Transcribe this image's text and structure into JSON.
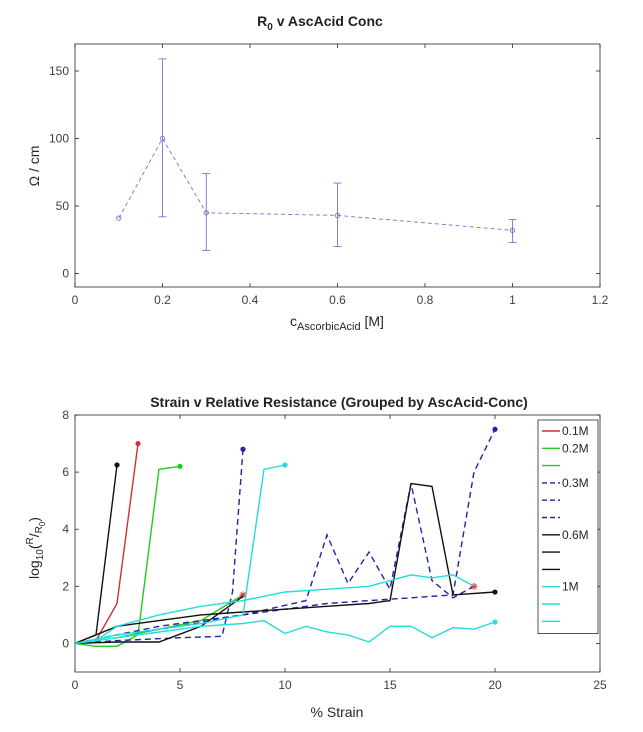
{
  "chart_data": [
    {
      "type": "scatter",
      "title": "R",
      "title_sub": "0",
      "title_rest": " v AscAcid Conc",
      "xlabel": "c",
      "xlabel_sub": "AscorbicAcid",
      "xlabel_rest": " [M]",
      "ylabel": "Ω / cm",
      "xlim": [
        0,
        1.2
      ],
      "ylim": [
        -10,
        170
      ],
      "xticks": [
        "0",
        "0.2",
        "0.4",
        "0.6",
        "0.8",
        "1",
        "1.2"
      ],
      "yticks": [
        "0",
        "50",
        "100",
        "150"
      ],
      "grid": false,
      "color": "#7b72d6",
      "series": [
        {
          "x": [
            0.1,
            0.2,
            0.3,
            0.6,
            1.0
          ],
          "y": [
            41,
            100,
            45,
            43,
            32
          ],
          "err_low": [
            0,
            58,
            28,
            23,
            9
          ],
          "err_high": [
            0,
            59,
            29,
            24,
            8
          ]
        }
      ]
    },
    {
      "type": "line",
      "title": "Strain v Relative Resistance (Grouped by AscAcid-Conc)",
      "xlabel": "% Strain",
      "ylabel": "log",
      "ylabel_sub": "10",
      "ylabel_rest": "(",
      "ylabel_sup": "R",
      "ylabel_mid": "/",
      "ylabel_sub2": "R",
      "ylabel_sub3": "0",
      "ylabel_end": ")",
      "xlim": [
        0,
        25
      ],
      "ylim": [
        -1,
        8
      ],
      "xticks": [
        "0",
        "5",
        "10",
        "15",
        "20",
        "25"
      ],
      "yticks": [
        "0",
        "2",
        "4",
        "6",
        "8"
      ],
      "grid": false,
      "legend_position": "top-right",
      "legend": [
        {
          "label": "0.1M",
          "color": "#d03030",
          "dash": "solid"
        },
        {
          "label": "0.2M",
          "color": "#22cc22",
          "dash": "solid"
        },
        {
          "label": "",
          "color": "#22cc22",
          "dash": "solid"
        },
        {
          "label": "0.3M",
          "color": "#2222aa",
          "dash": "dashed"
        },
        {
          "label": "",
          "color": "#2222aa",
          "dash": "dashed"
        },
        {
          "label": "",
          "color": "#2222aa",
          "dash": "dashed"
        },
        {
          "label": "0.6M",
          "color": "#111111",
          "dash": "solid"
        },
        {
          "label": "",
          "color": "#111111",
          "dash": "solid"
        },
        {
          "label": "",
          "color": "#111111",
          "dash": "solid"
        },
        {
          "label": "1M",
          "color": "#22dddd",
          "dash": "solid"
        },
        {
          "label": "",
          "color": "#22dddd",
          "dash": "solid"
        },
        {
          "label": "",
          "color": "#22dddd",
          "dash": "solid"
        }
      ],
      "series": [
        {
          "color": "#d03030",
          "dash": "solid",
          "x": [
            0,
            1,
            2,
            3
          ],
          "y": [
            0,
            0.1,
            1.4,
            7.0
          ],
          "marker": "dot"
        },
        {
          "color": "#22cc22",
          "dash": "solid",
          "x": [
            0,
            1,
            2,
            3,
            4,
            5
          ],
          "y": [
            0,
            -0.1,
            -0.1,
            0.3,
            6.1,
            6.2
          ],
          "marker": "dot"
        },
        {
          "color": "#22cc22",
          "dash": "solid",
          "x": [
            0,
            2,
            4,
            6,
            8
          ],
          "y": [
            0,
            0.2,
            0.5,
            0.8,
            1.7
          ],
          "marker": "star"
        },
        {
          "color": "#2222aa",
          "dash": "dashed",
          "x": [
            0,
            2,
            5,
            7,
            7.5,
            8
          ],
          "y": [
            0,
            0.1,
            0.2,
            0.25,
            1.8,
            6.8
          ],
          "marker": "dot"
        },
        {
          "color": "#2222aa",
          "dash": "dashed",
          "x": [
            0,
            2,
            5,
            8,
            11,
            12,
            13,
            14,
            15,
            16,
            17,
            18,
            19
          ],
          "y": [
            0,
            0.3,
            0.6,
            1.0,
            1.5,
            3.8,
            2.1,
            3.2,
            1.9,
            5.6,
            2.2,
            1.6,
            2.0
          ],
          "marker": "star"
        },
        {
          "color": "#2222aa",
          "dash": "dashed",
          "x": [
            0,
            2,
            4,
            6,
            8,
            10,
            12,
            14,
            16,
            18,
            19,
            20
          ],
          "y": [
            0,
            0.3,
            0.6,
            0.8,
            1.0,
            1.2,
            1.4,
            1.5,
            1.6,
            1.7,
            6.0,
            7.5
          ],
          "marker": "dot"
        },
        {
          "color": "#111111",
          "dash": "solid",
          "x": [
            0,
            1,
            2
          ],
          "y": [
            0,
            0.3,
            6.25
          ],
          "marker": "dot"
        },
        {
          "color": "#111111",
          "dash": "solid",
          "x": [
            0,
            2,
            4,
            6,
            8,
            10,
            12,
            14,
            15,
            16,
            17,
            18,
            20
          ],
          "y": [
            0,
            0.6,
            0.8,
            1.0,
            1.1,
            1.2,
            1.3,
            1.4,
            1.5,
            5.6,
            5.5,
            1.7,
            1.8
          ],
          "marker": "dot"
        },
        {
          "color": "#111111",
          "dash": "solid",
          "x": [
            0,
            2,
            4,
            6,
            8
          ],
          "y": [
            0,
            0.05,
            0.05,
            0.6,
            1.65
          ],
          "marker": "none"
        },
        {
          "color": "#22dddd",
          "dash": "solid",
          "x": [
            0,
            2,
            4,
            6,
            8,
            9,
            10
          ],
          "y": [
            0,
            0.3,
            0.5,
            0.7,
            1.0,
            6.1,
            6.25
          ],
          "marker": "dot"
        },
        {
          "color": "#22dddd",
          "dash": "solid",
          "x": [
            0,
            1,
            2,
            4,
            6,
            8,
            10,
            12,
            14,
            16,
            17,
            18,
            19
          ],
          "y": [
            0,
            0.1,
            0.6,
            1.0,
            1.3,
            1.5,
            1.8,
            1.9,
            2.0,
            2.4,
            2.3,
            2.4,
            2.0
          ],
          "marker": "none"
        },
        {
          "color": "#22dddd",
          "dash": "solid",
          "x": [
            0,
            2,
            4,
            6,
            8,
            9,
            10,
            11,
            12,
            13,
            14,
            15,
            16,
            17,
            18,
            19,
            20
          ],
          "y": [
            0,
            0.2,
            0.4,
            0.6,
            0.7,
            0.8,
            0.35,
            0.6,
            0.4,
            0.3,
            0.05,
            0.6,
            0.6,
            0.2,
            0.55,
            0.5,
            0.75
          ],
          "marker": "dot"
        }
      ]
    }
  ]
}
